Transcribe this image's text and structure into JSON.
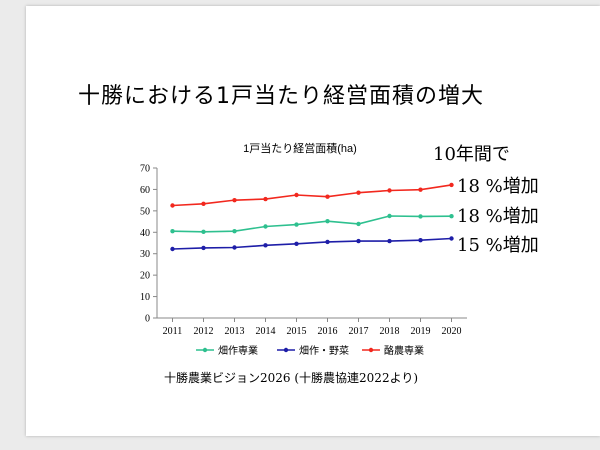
{
  "slide": {
    "title": "十勝における1戸当たり経営面積の増大",
    "annotations": {
      "headline": "10年間で",
      "upland_dairy": "18 %増加",
      "upland": "18 %増加",
      "upland_vegetables": "15 %増加"
    },
    "source": "十勝農業ビジョン2026 (十勝農協連2022より)"
  },
  "chart_data": {
    "type": "line",
    "title": "1戸当たり経営面積(ha)",
    "xlabel": "",
    "ylabel": "",
    "categories": [
      "2011",
      "2012",
      "2013",
      "2014",
      "2015",
      "2016",
      "2017",
      "2018",
      "2019",
      "2020"
    ],
    "ylim": [
      0,
      70
    ],
    "yticks": [
      0,
      10,
      20,
      30,
      40,
      50,
      60,
      70
    ],
    "grid": false,
    "legend_position": "bottom",
    "series": [
      {
        "name": "畑作専業",
        "color": "#2ec08f",
        "values": [
          40.5,
          40.2,
          40.5,
          42.7,
          43.6,
          45.2,
          43.9,
          47.6,
          47.4,
          47.5
        ]
      },
      {
        "name": "畑作・野菜",
        "color": "#1e1ea8",
        "values": [
          32.2,
          32.7,
          32.9,
          33.9,
          34.6,
          35.5,
          35.9,
          35.9,
          36.3,
          37.1
        ]
      },
      {
        "name": "酪農専業",
        "color": "#f2281e",
        "values": [
          52.5,
          53.3,
          55.0,
          55.5,
          57.4,
          56.6,
          58.5,
          59.5,
          59.9,
          62.1
        ]
      }
    ]
  }
}
